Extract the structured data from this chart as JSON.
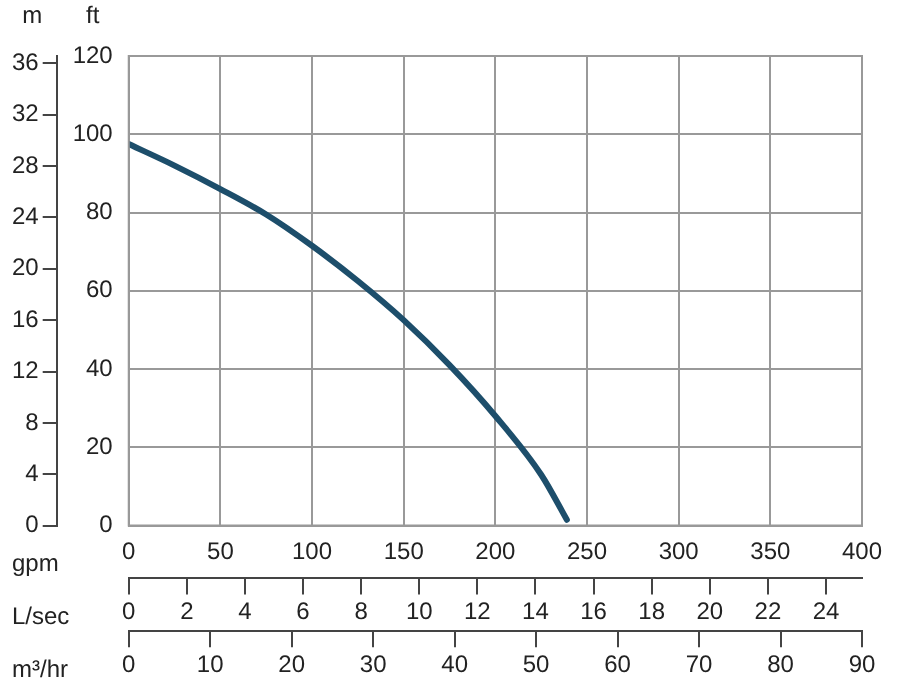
{
  "chart_data": {
    "type": "line",
    "xlabel": "gpm",
    "ylabel": "ft",
    "y2label": "m",
    "x2label": "L/sec",
    "annotations": [
      "m³/hr",
      "0",
      "10",
      "20",
      "30",
      "40",
      "50",
      "60",
      "70",
      "80",
      "90"
    ],
    "x": [
      0,
      25,
      50,
      75,
      100,
      125,
      150,
      175,
      200,
      225,
      239
    ],
    "series": [
      {
        "color": "#1d4e6b",
        "values": [
          97.5,
          92,
          86,
          79.5,
          71.5,
          62.5,
          52.5,
          41,
          28,
          13,
          1.5
        ]
      }
    ],
    "xlim": [
      0,
      400
    ],
    "xticks": [
      0,
      50,
      100,
      150,
      200,
      250,
      300,
      350,
      400
    ],
    "ylim": [
      0,
      120
    ],
    "yticks": [
      0,
      20,
      40,
      60,
      80,
      100,
      120
    ],
    "y2lim": [
      0,
      36.58
    ],
    "y2ticks": [
      0,
      4,
      8,
      12,
      16,
      20,
      24,
      28,
      32,
      36
    ],
    "x2lim": [
      0,
      25.24
    ],
    "x2ticks": [
      0,
      2,
      4,
      6,
      8,
      10,
      12,
      14,
      16,
      18,
      20,
      22,
      24
    ],
    "grid": true,
    "marker": "none",
    "line_style": "solid"
  }
}
